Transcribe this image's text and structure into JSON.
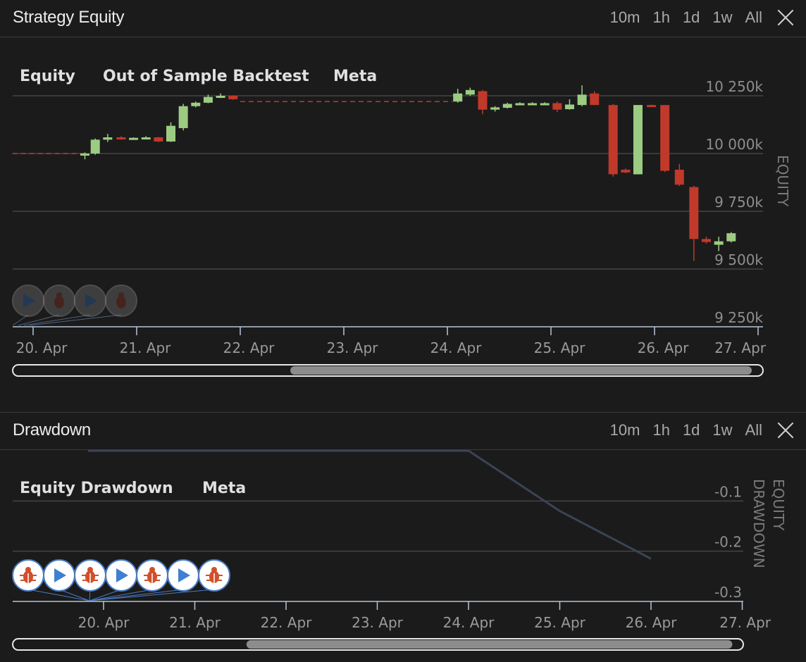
{
  "panels": {
    "equity": {
      "title": "Strategy Equity",
      "range_buttons": [
        "10m",
        "1h",
        "1d",
        "1w",
        "All"
      ],
      "legend": [
        "Equity",
        "Out of Sample Backtest",
        "Meta"
      ]
    },
    "drawdown": {
      "title": "Drawdown",
      "range_buttons": [
        "10m",
        "1h",
        "1d",
        "1w",
        "All"
      ],
      "legend": [
        "Equity Drawdown",
        "Meta"
      ]
    }
  },
  "chart_data": [
    {
      "type": "candlestick",
      "y_axis_title": "EQUITY",
      "y_ticks": [
        "10 250k",
        "10 000k",
        "9 750k",
        "9 500k",
        "9 250k"
      ],
      "y_tick_values": [
        10250000,
        10000000,
        9750000,
        9500000,
        9250000
      ],
      "ylim": [
        9250000,
        10250000
      ],
      "x_ticks": [
        "20. Apr",
        "21. Apr",
        "22. Apr",
        "23. Apr",
        "24. Apr",
        "25. Apr",
        "26. Apr",
        "27. Apr"
      ],
      "x_tick_days": [
        0,
        1,
        2,
        3,
        4,
        5,
        6,
        7
      ],
      "flat_line": {
        "x0": -0.2,
        "x1": 0.5,
        "y": 10000000
      },
      "flat_line_2": {
        "x0": 2.0,
        "x1": 4.05,
        "y": 10225000
      },
      "colors": {
        "up": "#9ccc82",
        "down": "#c0392b",
        "flat": "#c0392b",
        "grid": "#444444",
        "axis": "#b8c4d8"
      },
      "candles": [
        {
          "x": 0.5,
          "o": 9995000,
          "h": 10005000,
          "l": 9975000,
          "c": 10000000
        },
        {
          "x": 0.6,
          "o": 10000000,
          "h": 10065000,
          "l": 9995000,
          "c": 10060000
        },
        {
          "x": 0.72,
          "o": 10060000,
          "h": 10085000,
          "l": 10050000,
          "c": 10070000
        },
        {
          "x": 0.85,
          "o": 10070000,
          "h": 10075000,
          "l": 10060000,
          "c": 10065000
        },
        {
          "x": 0.97,
          "o": 10065000,
          "h": 10070000,
          "l": 10060000,
          "c": 10068000
        },
        {
          "x": 1.09,
          "o": 10068000,
          "h": 10075000,
          "l": 10063000,
          "c": 10070000
        },
        {
          "x": 1.21,
          "o": 10070000,
          "h": 10072000,
          "l": 10050000,
          "c": 10052000
        },
        {
          "x": 1.33,
          "o": 10052000,
          "h": 10135000,
          "l": 10050000,
          "c": 10120000
        },
        {
          "x": 1.45,
          "o": 10110000,
          "h": 10215000,
          "l": 10100000,
          "c": 10205000
        },
        {
          "x": 1.57,
          "o": 10205000,
          "h": 10225000,
          "l": 10200000,
          "c": 10220000
        },
        {
          "x": 1.69,
          "o": 10220000,
          "h": 10255000,
          "l": 10218000,
          "c": 10245000
        },
        {
          "x": 1.81,
          "o": 10245000,
          "h": 10260000,
          "l": 10240000,
          "c": 10250000
        },
        {
          "x": 1.93,
          "o": 10250000,
          "h": 10252000,
          "l": 10232000,
          "c": 10235000
        },
        {
          "x": 4.1,
          "o": 10225000,
          "h": 10280000,
          "l": 10220000,
          "c": 10260000
        },
        {
          "x": 4.22,
          "o": 10255000,
          "h": 10285000,
          "l": 10250000,
          "c": 10275000
        },
        {
          "x": 4.34,
          "o": 10270000,
          "h": 10275000,
          "l": 10170000,
          "c": 10190000
        },
        {
          "x": 4.46,
          "o": 10190000,
          "h": 10205000,
          "l": 10182000,
          "c": 10200000
        },
        {
          "x": 4.58,
          "o": 10198000,
          "h": 10220000,
          "l": 10195000,
          "c": 10215000
        },
        {
          "x": 4.7,
          "o": 10212000,
          "h": 10222000,
          "l": 10210000,
          "c": 10218000
        },
        {
          "x": 4.82,
          "o": 10216000,
          "h": 10222000,
          "l": 10213000,
          "c": 10218000
        },
        {
          "x": 4.94,
          "o": 10218000,
          "h": 10222000,
          "l": 10215000,
          "c": 10218000
        },
        {
          "x": 5.06,
          "o": 10218000,
          "h": 10225000,
          "l": 10180000,
          "c": 10190000
        },
        {
          "x": 5.18,
          "o": 10192000,
          "h": 10235000,
          "l": 10190000,
          "c": 10212000
        },
        {
          "x": 5.3,
          "o": 10210000,
          "h": 10295000,
          "l": 10205000,
          "c": 10255000
        },
        {
          "x": 5.42,
          "o": 10260000,
          "h": 10270000,
          "l": 10210000,
          "c": 10210000
        },
        {
          "x": 5.6,
          "o": 10210000,
          "h": 10215000,
          "l": 9900000,
          "c": 9910000
        },
        {
          "x": 5.72,
          "o": 9930000,
          "h": 9935000,
          "l": 9915000,
          "c": 9918000
        },
        {
          "x": 5.84,
          "o": 9910000,
          "h": 10210000,
          "l": 9910000,
          "c": 10210000
        },
        {
          "x": 5.97,
          "o": 10210000,
          "h": 10212000,
          "l": 10206000,
          "c": 10207000
        },
        {
          "x": 6.1,
          "o": 10210000,
          "h": 10210000,
          "l": 9920000,
          "c": 9925000
        },
        {
          "x": 6.24,
          "o": 9930000,
          "h": 9955000,
          "l": 9860000,
          "c": 9865000
        },
        {
          "x": 6.38,
          "o": 9855000,
          "h": 9860000,
          "l": 9535000,
          "c": 9630000
        },
        {
          "x": 6.5,
          "o": 9630000,
          "h": 9640000,
          "l": 9610000,
          "c": 9617000
        },
        {
          "x": 6.62,
          "o": 9605000,
          "h": 9640000,
          "l": 9578000,
          "c": 9620000
        },
        {
          "x": 6.74,
          "o": 9620000,
          "h": 9660000,
          "l": 9615000,
          "c": 9655000
        }
      ]
    },
    {
      "type": "line",
      "y_axis_title": "EQUITY DRAWDOWN",
      "y_ticks": [
        "-0.1",
        "-0.2",
        "-0.3"
      ],
      "y_tick_values": [
        -0.1,
        -0.2,
        -0.3
      ],
      "ylim": [
        -0.3,
        0
      ],
      "x_ticks": [
        "20. Apr",
        "21. Apr",
        "22. Apr",
        "23. Apr",
        "24. Apr",
        "25. Apr",
        "26. Apr",
        "27. Apr"
      ],
      "x_tick_days": [
        0,
        1,
        2,
        3,
        4,
        5,
        6,
        7
      ],
      "series": [
        {
          "x": [
            -0.17,
            4.0,
            5.0,
            6.0
          ],
          "values": [
            0,
            0,
            -0.12,
            -0.215
          ],
          "color": "#3b4354"
        }
      ]
    }
  ],
  "navigator_markers": {
    "equity": [
      "play",
      "bug",
      "play",
      "bug"
    ],
    "drawdown": [
      "bug",
      "play",
      "bug",
      "play",
      "bug",
      "play",
      "bug"
    ]
  },
  "scrollbars": {
    "equity": {
      "start": 0.37,
      "end": 0.985
    },
    "drawdown": {
      "start": 0.32,
      "end": 0.985
    }
  }
}
